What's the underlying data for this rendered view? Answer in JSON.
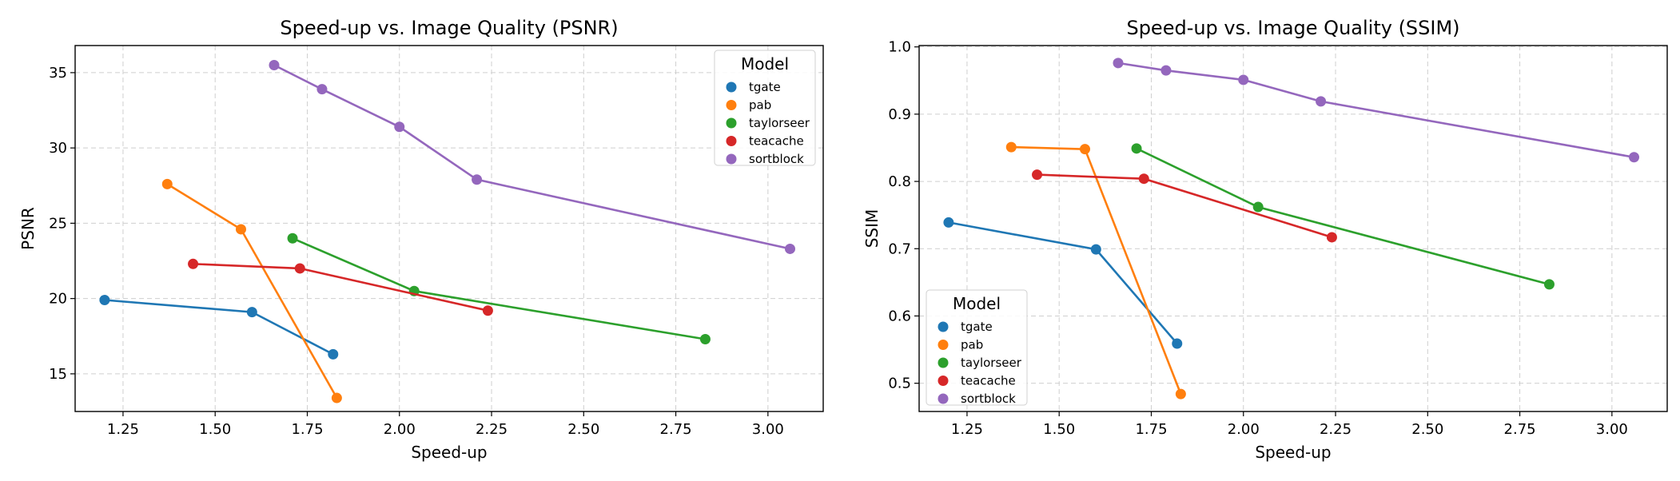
{
  "chart_data": [
    {
      "type": "line",
      "title": "Speed-up vs. Image Quality (PSNR)",
      "xlabel": "Speed-up",
      "ylabel": "PSNR",
      "xlim": [
        1.12,
        3.15
      ],
      "ylim": [
        12.5,
        36.8
      ],
      "xticks": [
        "1.25",
        "1.50",
        "1.75",
        "2.00",
        "2.25",
        "2.50",
        "2.75",
        "3.00"
      ],
      "yticks": [
        "15",
        "20",
        "25",
        "30",
        "35"
      ],
      "grid": true,
      "legend": {
        "title": "Model",
        "placement": "top-right"
      },
      "series": [
        {
          "name": "tgate",
          "color": "#1f77b4",
          "x": [
            1.2,
            1.6,
            1.82
          ],
          "y": [
            19.9,
            19.1,
            16.3
          ]
        },
        {
          "name": "pab",
          "color": "#ff7f0e",
          "x": [
            1.37,
            1.57,
            1.83
          ],
          "y": [
            27.6,
            24.6,
            13.4
          ]
        },
        {
          "name": "taylorseer",
          "color": "#2ca02c",
          "x": [
            1.71,
            2.04,
            2.83
          ],
          "y": [
            24.0,
            20.5,
            17.3
          ]
        },
        {
          "name": "teacache",
          "color": "#d62728",
          "x": [
            1.44,
            1.73,
            2.24
          ],
          "y": [
            22.3,
            22.0,
            19.2
          ]
        },
        {
          "name": "sortblock",
          "color": "#9467bd",
          "x": [
            1.66,
            1.79,
            2.0,
            2.21,
            3.06
          ],
          "y": [
            35.5,
            33.9,
            31.4,
            27.9,
            23.3
          ]
        }
      ]
    },
    {
      "type": "line",
      "title": "Speed-up vs. Image Quality (SSIM)",
      "xlabel": "Speed-up",
      "ylabel": "SSIM",
      "xlim": [
        1.12,
        3.15
      ],
      "ylim": [
        0.458,
        1.002
      ],
      "xticks": [
        "1.25",
        "1.50",
        "1.75",
        "2.00",
        "2.25",
        "2.50",
        "2.75",
        "3.00"
      ],
      "yticks": [
        "0.5",
        "0.6",
        "0.7",
        "0.8",
        "0.9",
        "1.0"
      ],
      "grid": true,
      "legend": {
        "title": "Model",
        "placement": "bottom-left"
      },
      "series": [
        {
          "name": "tgate",
          "color": "#1f77b4",
          "x": [
            1.2,
            1.6,
            1.82
          ],
          "y": [
            0.739,
            0.699,
            0.559
          ]
        },
        {
          "name": "pab",
          "color": "#ff7f0e",
          "x": [
            1.37,
            1.57,
            1.83
          ],
          "y": [
            0.851,
            0.848,
            0.484
          ]
        },
        {
          "name": "taylorseer",
          "color": "#2ca02c",
          "x": [
            1.71,
            2.04,
            2.83
          ],
          "y": [
            0.849,
            0.762,
            0.647
          ]
        },
        {
          "name": "teacache",
          "color": "#d62728",
          "x": [
            1.44,
            1.73,
            2.24
          ],
          "y": [
            0.81,
            0.804,
            0.717
          ]
        },
        {
          "name": "sortblock",
          "color": "#9467bd",
          "x": [
            1.66,
            1.79,
            2.0,
            2.21,
            3.06
          ],
          "y": [
            0.976,
            0.965,
            0.951,
            0.919,
            0.836
          ]
        }
      ]
    }
  ]
}
